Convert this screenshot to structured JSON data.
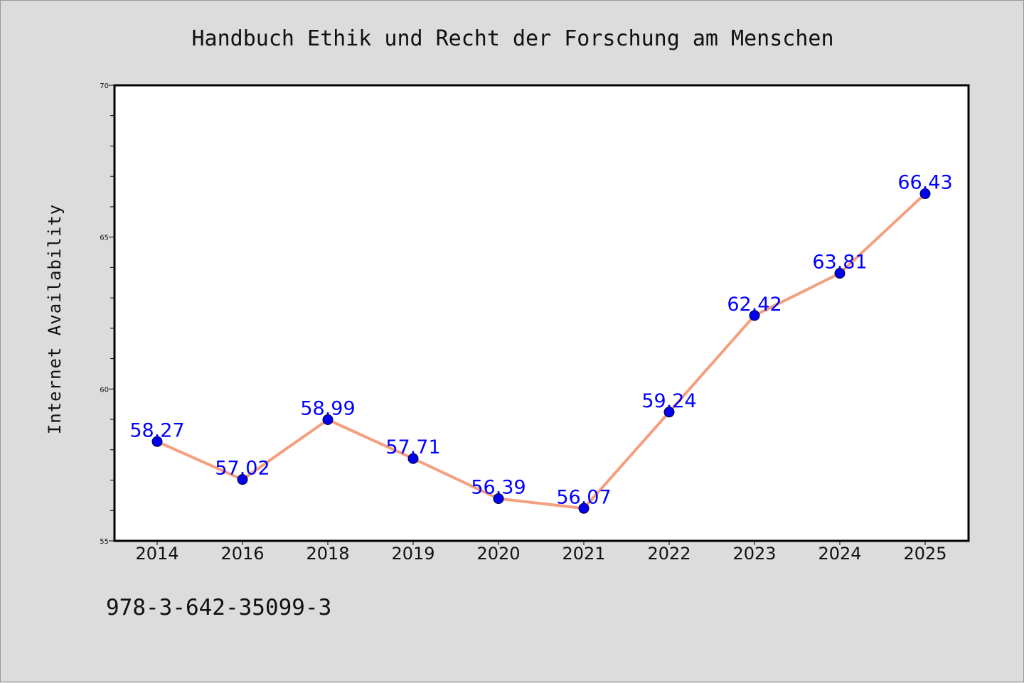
{
  "chart_data": {
    "type": "line",
    "title": "Handbuch Ethik und Recht der Forschung am Menschen",
    "xlabel": "",
    "ylabel": "Internet Availability",
    "categories": [
      "2014",
      "2016",
      "2018",
      "2019",
      "2020",
      "2021",
      "2022",
      "2023",
      "2024",
      "2025"
    ],
    "series": [
      {
        "values": [
          58.27,
          57.02,
          58.99,
          57.71,
          56.39,
          56.07,
          59.24,
          62.42,
          63.81,
          66.43
        ],
        "labels": [
          "58.27",
          "57.02",
          "58.99",
          "57.71",
          "56.39",
          "56.07",
          "59.24",
          "62.42",
          "63.81",
          "66.43"
        ]
      }
    ],
    "ylim": [
      55,
      70
    ],
    "yticks": [
      "55",
      "60",
      "65",
      "70"
    ],
    "grid": false,
    "legend": "none",
    "colors": {
      "line": "#f4a07e",
      "marker": "#0000ee",
      "label": "#0000ff",
      "plot_bg": "#ffffff",
      "page_bg": "#dcdcdc"
    }
  },
  "footer": {
    "isbn": "978-3-642-35099-3"
  }
}
